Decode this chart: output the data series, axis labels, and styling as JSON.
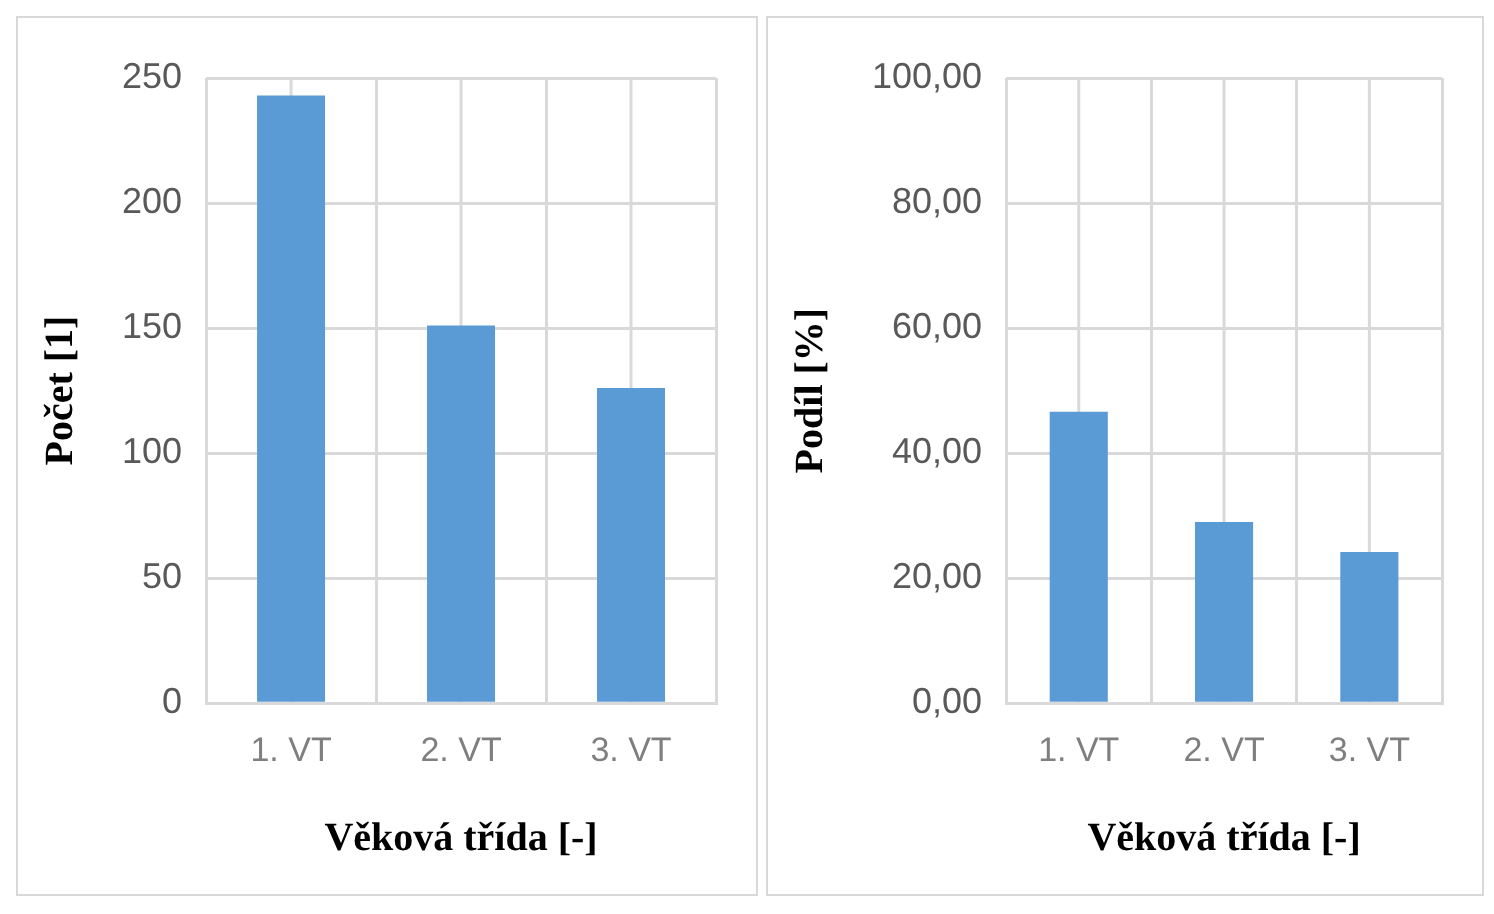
{
  "chart_data": [
    {
      "type": "bar",
      "categories": [
        "1. VT",
        "2. VT",
        "3. VT"
      ],
      "values": [
        243,
        151,
        126
      ],
      "color": "#5b9bd5",
      "xlabel": "Věková třída [-]",
      "ylabel": "Počet [1]",
      "ylim": [
        0,
        250
      ],
      "yticks": [
        0,
        50,
        100,
        150,
        200,
        250
      ],
      "grid": true
    },
    {
      "type": "bar",
      "categories": [
        "1. VT",
        "2. VT",
        "3. VT"
      ],
      "values": [
        46.6,
        29.0,
        24.2
      ],
      "color": "#5b9bd5",
      "xlabel": "Věková třída [-]",
      "ylabel": "Podíl [%]",
      "ylim": [
        0,
        100
      ],
      "yticks": [
        {
          "value": 0,
          "label": "0,00"
        },
        {
          "value": 20,
          "label": "20,00"
        },
        {
          "value": 40,
          "label": "40,00"
        },
        {
          "value": 60,
          "label": "60,00"
        },
        {
          "value": 80,
          "label": "80,00"
        },
        {
          "value": 100,
          "label": "100,00"
        }
      ],
      "grid": true
    }
  ]
}
